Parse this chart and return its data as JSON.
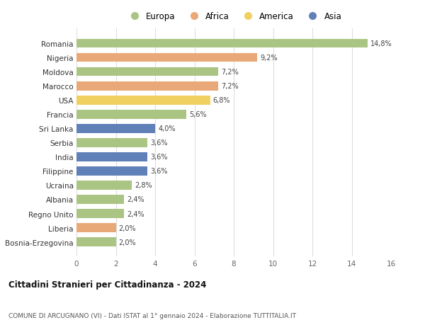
{
  "countries": [
    "Romania",
    "Nigeria",
    "Moldova",
    "Marocco",
    "USA",
    "Francia",
    "Sri Lanka",
    "Serbia",
    "India",
    "Filippine",
    "Ucraina",
    "Albania",
    "Regno Unito",
    "Liberia",
    "Bosnia-Erzegovina"
  ],
  "values": [
    14.8,
    9.2,
    7.2,
    7.2,
    6.8,
    5.6,
    4.0,
    3.6,
    3.6,
    3.6,
    2.8,
    2.4,
    2.4,
    2.0,
    2.0
  ],
  "labels": [
    "14,8%",
    "9,2%",
    "7,2%",
    "7,2%",
    "6,8%",
    "5,6%",
    "4,0%",
    "3,6%",
    "3,6%",
    "3,6%",
    "2,8%",
    "2,4%",
    "2,4%",
    "2,0%",
    "2,0%"
  ],
  "continents": [
    "Europa",
    "Africa",
    "Europa",
    "Africa",
    "America",
    "Europa",
    "Asia",
    "Europa",
    "Asia",
    "Asia",
    "Europa",
    "Europa",
    "Europa",
    "Africa",
    "Europa"
  ],
  "colors": {
    "Europa": "#aac483",
    "Africa": "#e8a878",
    "America": "#f0d060",
    "Asia": "#6080b8"
  },
  "legend_order": [
    "Europa",
    "Africa",
    "America",
    "Asia"
  ],
  "title": "Cittadini Stranieri per Cittadinanza - 2024",
  "subtitle": "COMUNE DI ARCUGNANO (VI) - Dati ISTAT al 1° gennaio 2024 - Elaborazione TUTTITALIA.IT",
  "xlim": [
    0,
    16
  ],
  "xticks": [
    0,
    2,
    4,
    6,
    8,
    10,
    12,
    14,
    16
  ],
  "background_color": "#ffffff",
  "grid_color": "#dddddd",
  "bar_height": 0.62,
  "figsize": [
    6.0,
    4.6
  ],
  "dpi": 100
}
